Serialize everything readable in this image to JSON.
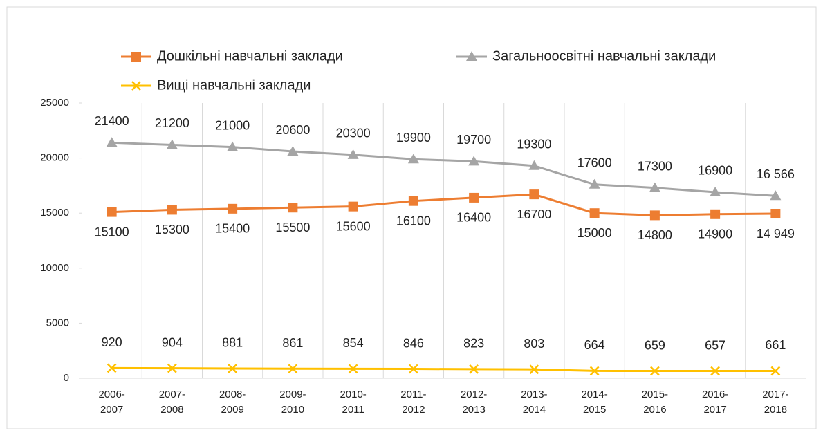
{
  "chart_data": {
    "type": "line",
    "categories": [
      "2006-2007",
      "2007-2008",
      "2008-2009",
      "2009-2010",
      "2010-2011",
      "2011-2012",
      "2012-2013",
      "2013-2014",
      "2014-2015",
      "2015-2016",
      "2016-2017",
      "2017-2018"
    ],
    "series": [
      {
        "name": "Дошкільні навчальні заклади",
        "color": "#ed7d31",
        "marker": "square",
        "values": [
          15100,
          15300,
          15400,
          15500,
          15600,
          16100,
          16400,
          16700,
          15000,
          14800,
          14900,
          14949
        ],
        "value_labels": [
          "15100",
          "15300",
          "15400",
          "15500",
          "15600",
          "16100",
          "16400",
          "16700",
          "15000",
          "14800",
          "14900",
          "14 949"
        ]
      },
      {
        "name": "Загальноосвітні навчальні заклади",
        "color": "#a5a5a5",
        "marker": "triangle",
        "values": [
          21400,
          21200,
          21000,
          20600,
          20300,
          19900,
          19700,
          19300,
          17600,
          17300,
          16900,
          16566
        ],
        "value_labels": [
          "21400",
          "21200",
          "21000",
          "20600",
          "20300",
          "19900",
          "19700",
          "19300",
          "17600",
          "17300",
          "16900",
          "16 566"
        ]
      },
      {
        "name": "Вищі навчальні заклади",
        "color": "#ffc000",
        "marker": "x",
        "values": [
          920,
          904,
          881,
          861,
          854,
          846,
          823,
          803,
          664,
          659,
          657,
          661
        ],
        "value_labels": [
          "920",
          "904",
          "881",
          "861",
          "854",
          "846",
          "823",
          "803",
          "664",
          "659",
          "657",
          "661"
        ]
      }
    ],
    "ylim": [
      0,
      25000
    ],
    "yticks": [
      0,
      5000,
      10000,
      15000,
      20000,
      25000
    ],
    "grid": "vertical",
    "legend": "top"
  }
}
